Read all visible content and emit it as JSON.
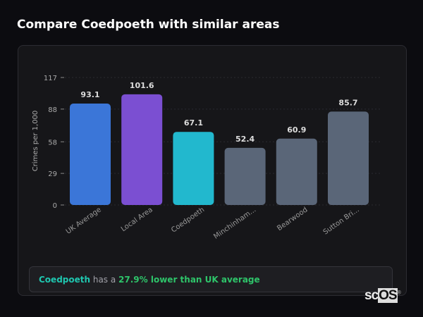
{
  "title": "Compare Coedpoeth with similar areas",
  "chart_data": {
    "type": "bar",
    "title": "",
    "xlabel": "",
    "ylabel": "Crimes per 1,000",
    "ylim": [
      0,
      117
    ],
    "yticks": [
      0,
      29,
      58,
      88,
      117
    ],
    "grid": true,
    "categories": [
      "UK Average",
      "Local Area",
      "Coedpoeth",
      "Minchinham...",
      "Bearwood",
      "Sutton Bri..."
    ],
    "values": [
      93.1,
      101.6,
      67.1,
      52.4,
      60.9,
      85.7
    ],
    "labels": [
      "93.1",
      "101.6",
      "67.1",
      "52.4",
      "60.9",
      "85.7"
    ],
    "colors": [
      "#3b76d8",
      "#7b4fd2",
      "#22b8ce",
      "#5a6678",
      "#5a6678",
      "#5a6678"
    ]
  },
  "summary": {
    "area": "Coedpoeth",
    "middle": " has a ",
    "highlight": "27.9% lower than UK average"
  },
  "logo": {
    "a": "sc",
    "b": "OS",
    "c": "®"
  }
}
